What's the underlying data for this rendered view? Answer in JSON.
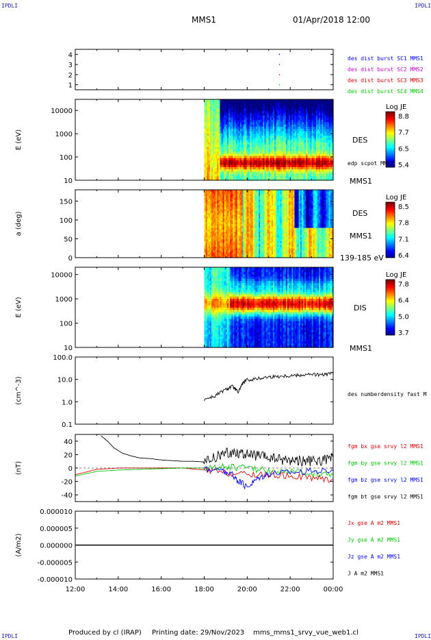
{
  "corner_label": "IPDLI",
  "header": {
    "spacecraft": "MMS1",
    "datetime": "01/Apr/2018 12:00"
  },
  "footer": {
    "produced_by": "Produced by cl (IRAP)",
    "printing_date": "Printing date: 29/Nov/2023",
    "filename": "mms_mms1_srvy_vue_web1.cl"
  },
  "colors": {
    "blue": "#0000ff",
    "magenta": "#cc00cc",
    "red": "#dd0000",
    "green": "#00c800",
    "black": "#000000"
  },
  "chart_data": [
    {
      "id": "burst",
      "type": "scatter",
      "y_ticks": [
        "1",
        "2",
        "3",
        "4"
      ],
      "ylim": [
        0.5,
        4.5
      ],
      "legend": [
        {
          "name": "des dist burst SC1 MMS1",
          "color": "blue"
        },
        {
          "name": "des dist burst SC2 MMS2",
          "color": "magenta"
        },
        {
          "name": "des dist burst SC3 MMS3",
          "color": "red"
        },
        {
          "name": "des dist burst SC4 MMS4",
          "color": "green"
        }
      ],
      "points": [
        {
          "x": 21.5,
          "y": 4,
          "color": "blue"
        },
        {
          "x": 21.5,
          "y": 3,
          "color": "magenta"
        },
        {
          "x": 21.5,
          "y": 2,
          "color": "red"
        },
        {
          "x": 21.5,
          "y": 1,
          "color": "green"
        }
      ]
    },
    {
      "id": "des_energy",
      "type": "heatmap",
      "ylabel": "E (eV)",
      "y_ticks": [
        "10",
        "100",
        "1000",
        "10000"
      ],
      "y_scale": "log",
      "ylim": [
        10,
        30000
      ],
      "data_start": 18.0,
      "right_labels": [
        "DES",
        "edp scpot MMS1",
        "MMS1"
      ],
      "colorbar": {
        "title": "Log JE",
        "ticks": [
          "8.8",
          "7.7",
          "6.5",
          "5.4"
        ]
      }
    },
    {
      "id": "des_pitch",
      "type": "heatmap",
      "ylabel": "a (deg)",
      "y_ticks": [
        "0",
        "50",
        "100",
        "150"
      ],
      "ylim": [
        0,
        180
      ],
      "data_start": 18.0,
      "right_labels": [
        "DES",
        "MMS1",
        "139-185 eV"
      ],
      "colorbar": {
        "title": "Log JE",
        "ticks": [
          "8.5",
          "7.8",
          "7.1",
          "6.4"
        ]
      }
    },
    {
      "id": "dis_energy",
      "type": "heatmap",
      "ylabel": "E (eV)",
      "y_ticks": [
        "10",
        "100",
        "1000",
        "10000"
      ],
      "y_scale": "log",
      "ylim": [
        10,
        20000
      ],
      "data_start": 18.0,
      "right_labels": [
        "DIS",
        "MMS1"
      ],
      "colorbar": {
        "title": "Log JE",
        "ticks": [
          "7.8",
          "6.4",
          "5.0",
          "3.7"
        ]
      }
    },
    {
      "id": "density",
      "type": "line",
      "ylabel": "(cm^-3)",
      "y_ticks": [
        "0.1",
        "1.0",
        "10.0",
        "100.0"
      ],
      "y_scale": "log",
      "ylim": [
        0.1,
        100
      ],
      "legend": [
        {
          "name": "des numberdensity fast M",
          "color": "black"
        }
      ],
      "series": [
        {
          "x": [
            18.0,
            18.5,
            19.0,
            19.3,
            19.6,
            19.8,
            20.0,
            20.5,
            21.0,
            21.5,
            22.0,
            22.5,
            23.0,
            23.5,
            24.0
          ],
          "y": [
            1.3,
            1.8,
            3.5,
            5.0,
            2.5,
            7.0,
            9.5,
            11.0,
            13.0,
            14.0,
            15.0,
            16.0,
            17.0,
            16.0,
            19.0
          ]
        }
      ]
    },
    {
      "id": "magfield",
      "type": "line",
      "ylabel": "(nT)",
      "y_ticks": [
        "-40",
        "-20",
        "0",
        "20",
        "40"
      ],
      "ylim": [
        -50,
        50
      ],
      "legend": [
        {
          "name": "fgm bx gse srvy l2 MMS1",
          "color": "red"
        },
        {
          "name": "fgm by gse srvy l2 MMS1",
          "color": "green"
        },
        {
          "name": "fgm bz gse srvy l2 MMS1",
          "color": "blue"
        },
        {
          "name": "fgm bt gse srvy l2 MMS1",
          "color": "black"
        }
      ],
      "series": [
        {
          "color": "black",
          "x": [
            13.2,
            13.5,
            13.8,
            14.2,
            14.6,
            15.0,
            15.5,
            16.0,
            16.5,
            17.0,
            17.5,
            18.0,
            18.5,
            19.0,
            19.5,
            20.0,
            20.5,
            21.0,
            21.5,
            22.0,
            22.5,
            23.0,
            23.5,
            24.0
          ],
          "y": [
            48,
            40,
            30,
            22,
            18,
            15,
            14,
            12,
            11,
            10,
            10,
            9,
            15,
            22,
            24,
            20,
            18,
            15,
            13,
            12,
            11,
            10,
            11,
            16
          ]
        },
        {
          "color": "red",
          "x": [
            12.0,
            13.0,
            14.0,
            15.0,
            16.0,
            17.0,
            18.0,
            19.0,
            20.0,
            21.0,
            22.0,
            23.0,
            24.0
          ],
          "y": [
            -10,
            -2,
            0,
            0,
            0,
            0,
            -3,
            -8,
            -10,
            -10,
            -12,
            -14,
            -18
          ]
        },
        {
          "color": "green",
          "x": [
            12.0,
            13.0,
            14.0,
            15.0,
            16.0,
            17.0,
            18.0,
            19.0,
            20.0,
            21.0,
            22.0,
            23.0,
            24.0
          ],
          "y": [
            -12,
            -5,
            -3,
            -2,
            -1,
            0,
            0,
            2,
            0,
            -4,
            -6,
            -8,
            -10
          ]
        },
        {
          "color": "blue",
          "x": [
            18.0,
            18.8,
            19.3,
            19.6,
            20.0,
            20.5,
            21.0,
            22.0,
            23.0,
            24.0
          ],
          "y": [
            0,
            -4,
            -10,
            -20,
            -28,
            -15,
            -8,
            -6,
            -5,
            -4
          ]
        }
      ]
    },
    {
      "id": "current",
      "type": "line",
      "ylabel": "(A/m2)",
      "y_ticks": [
        "-0.000010",
        "-0.000005",
        "0.000000",
        "0.000005",
        "0.000010"
      ],
      "ylim": [
        -1e-05,
        1e-05
      ],
      "legend": [
        {
          "name": "Jx gse A m2 MMS1",
          "color": "red"
        },
        {
          "name": "Jy gse A m2 MMS1",
          "color": "green"
        },
        {
          "name": "Jz gse A m2 MMS1",
          "color": "blue"
        },
        {
          "name": "J A m2 MMS1",
          "color": "black"
        }
      ],
      "x_ticks": [
        "12:00",
        "14:00",
        "16:00",
        "18:00",
        "20:00",
        "22:00",
        "00:00"
      ],
      "series": [
        {
          "x": [
            12,
            24
          ],
          "y": [
            0,
            0
          ]
        }
      ]
    }
  ]
}
